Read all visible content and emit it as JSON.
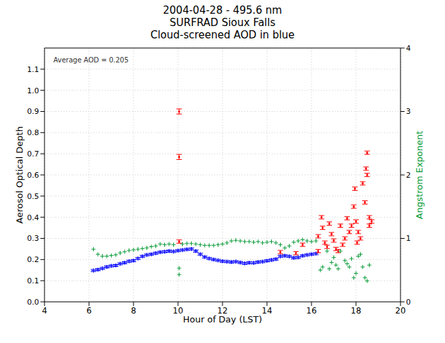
{
  "chart_data": {
    "type": "scatter",
    "title": [
      "2004-04-28 - 495.6 nm",
      "SURFRAD Sioux Falls",
      "Cloud-screened AOD in blue"
    ],
    "x_label": "Hour of Day (LST)",
    "y_label": "Aerosol Optical Depth",
    "y2_label": "Angstrom Exponent",
    "annotations": [
      "Average AOD = 0.205"
    ],
    "xlim": [
      4,
      20
    ],
    "xticks": [
      4,
      6,
      8,
      10,
      12,
      14,
      16,
      18,
      20
    ],
    "ylim": [
      0,
      1.2
    ],
    "yticks": [
      {
        "value": 0,
        "label": "0.0"
      },
      {
        "value": 0.1,
        "label": "0.1"
      },
      {
        "value": 0.2,
        "label": "0.2"
      },
      {
        "value": 0.3,
        "label": "0.3"
      },
      {
        "value": 0.4,
        "label": "0.4"
      },
      {
        "value": 0.5,
        "label": "0.5"
      },
      {
        "value": 0.6,
        "label": "0.6"
      },
      {
        "value": 0.7,
        "label": "0.7"
      },
      {
        "value": 0.8,
        "label": "0.8"
      },
      {
        "value": 0.9,
        "label": "0.9"
      },
      {
        "value": 1,
        "label": "1.0"
      },
      {
        "value": 1.1,
        "label": "1.1"
      }
    ],
    "y2lim": [
      0,
      4
    ],
    "y2ticks": [
      0,
      1,
      2,
      3,
      4
    ],
    "grid": true,
    "series": [
      {
        "color": "#0000ff",
        "marker": "plus",
        "x": [
          6.2,
          6.4,
          6.6,
          6.8,
          7.0,
          7.2,
          7.4,
          7.6,
          7.8,
          8.0,
          8.2,
          8.4,
          8.6,
          8.8,
          9.0,
          9.2,
          9.4,
          9.6,
          9.8,
          10.0,
          10.2,
          10.4,
          10.6,
          10.8,
          11.0,
          11.2,
          11.4,
          11.6,
          11.8,
          12.0,
          12.2,
          12.4,
          12.6,
          12.8,
          13.0,
          13.2,
          13.4,
          13.6,
          13.8,
          14.0,
          14.2,
          14.4,
          14.6,
          14.8,
          15.0,
          15.2,
          15.4,
          15.6,
          15.8,
          16.0,
          16.2
        ],
        "values": [
          0.148,
          0.152,
          0.158,
          0.165,
          0.17,
          0.172,
          0.18,
          0.185,
          0.192,
          0.195,
          0.205,
          0.215,
          0.222,
          0.225,
          0.23,
          0.235,
          0.237,
          0.24,
          0.238,
          0.242,
          0.245,
          0.248,
          0.25,
          0.24,
          0.225,
          0.212,
          0.205,
          0.2,
          0.196,
          0.192,
          0.19,
          0.188,
          0.19,
          0.186,
          0.182,
          0.185,
          0.184,
          0.188,
          0.19,
          0.194,
          0.198,
          0.202,
          0.215,
          0.218,
          0.215,
          0.208,
          0.21,
          0.218,
          0.222,
          0.225,
          0.228
        ],
        "errors": [
          0.005,
          0.005,
          0.005,
          0.005,
          0.005,
          0.005,
          0.005,
          0.005,
          0.005,
          0.005,
          0.005,
          0.005,
          0.005,
          0.005,
          0.005,
          0.005,
          0.005,
          0.005,
          0.005,
          0.005,
          0.005,
          0.005,
          0.005,
          0.005,
          0.005,
          0.005,
          0.005,
          0.005,
          0.005,
          0.005,
          0.005,
          0.005,
          0.005,
          0.005,
          0.005,
          0.005,
          0.005,
          0.005,
          0.005,
          0.005,
          0.005,
          0.005,
          0.005,
          0.005,
          0.005,
          0.005,
          0.005,
          0.005,
          0.005,
          0.005,
          0.005
        ]
      },
      {
        "color": "#ff0000",
        "marker": "point",
        "x": [
          10.05,
          10.05,
          10.05,
          14.6,
          15.3,
          15.6,
          16.3,
          16.3,
          16.45,
          16.5,
          16.6,
          16.7,
          16.8,
          16.9,
          17.0,
          17.1,
          17.2,
          17.3,
          17.4,
          17.5,
          17.6,
          17.7,
          17.8,
          17.9,
          17.95,
          18.0,
          18.05,
          18.1,
          18.2,
          18.3,
          18.4,
          18.45,
          18.5,
          18.5,
          18.6,
          18.6,
          18.7
        ],
        "values": [
          0.9,
          0.685,
          0.285,
          0.235,
          0.23,
          0.27,
          0.31,
          0.24,
          0.4,
          0.35,
          0.28,
          0.26,
          0.37,
          0.32,
          0.29,
          0.25,
          0.24,
          0.36,
          0.27,
          0.3,
          0.395,
          0.33,
          0.36,
          0.45,
          0.535,
          0.38,
          0.28,
          0.33,
          0.3,
          0.56,
          0.47,
          0.63,
          0.705,
          0.6,
          0.4,
          0.36,
          0.38
        ],
        "errors": [
          0.012,
          0.012,
          0.008,
          0.008,
          0.008,
          0.008,
          0.008,
          0.008,
          0.008,
          0.008,
          0.008,
          0.008,
          0.008,
          0.008,
          0.008,
          0.008,
          0.008,
          0.008,
          0.008,
          0.008,
          0.008,
          0.008,
          0.008,
          0.008,
          0.008,
          0.008,
          0.008,
          0.008,
          0.008,
          0.008,
          0.008,
          0.008,
          0.008,
          0.008,
          0.008,
          0.008,
          0.008
        ]
      },
      {
        "color": "#009933",
        "marker": "plus",
        "axis": "y2",
        "x": [
          6.2,
          6.4,
          6.6,
          6.8,
          7.0,
          7.2,
          7.4,
          7.6,
          7.8,
          8.0,
          8.2,
          8.4,
          8.6,
          8.8,
          9.0,
          9.2,
          9.4,
          9.6,
          9.8,
          10.05,
          10.05,
          10.2,
          10.4,
          10.6,
          10.8,
          11.0,
          11.2,
          11.4,
          11.6,
          11.8,
          12.0,
          12.2,
          12.4,
          12.6,
          12.8,
          13.0,
          13.2,
          13.4,
          13.6,
          13.8,
          14.0,
          14.2,
          14.4,
          14.6,
          14.8,
          15.0,
          15.2,
          15.4,
          15.6,
          15.8,
          16.0,
          16.2,
          16.4,
          16.5,
          16.7,
          16.8,
          16.9,
          17.0,
          17.1,
          17.2,
          17.3,
          17.5,
          17.6,
          17.7,
          17.8,
          17.9,
          18.0,
          18.1,
          18.2,
          18.3,
          18.4,
          18.5,
          18.6
        ],
        "values": [
          0.83,
          0.75,
          0.72,
          0.72,
          0.73,
          0.74,
          0.77,
          0.79,
          0.81,
          0.82,
          0.83,
          0.84,
          0.85,
          0.87,
          0.88,
          0.91,
          0.9,
          0.91,
          0.9,
          0.53,
          0.43,
          0.91,
          0.92,
          0.92,
          0.91,
          0.9,
          0.89,
          0.89,
          0.89,
          0.9,
          0.91,
          0.93,
          0.96,
          0.97,
          0.96,
          0.95,
          0.95,
          0.94,
          0.95,
          0.93,
          0.94,
          0.95,
          0.93,
          0.9,
          0.85,
          0.88,
          0.94,
          0.96,
          0.98,
          0.96,
          0.95,
          0.96,
          0.5,
          0.55,
          0.8,
          0.52,
          0.62,
          0.7,
          0.58,
          0.52,
          0.8,
          0.65,
          0.6,
          0.55,
          0.68,
          0.38,
          0.45,
          0.72,
          0.75,
          0.55,
          0.38,
          0.33,
          0.58
        ]
      }
    ]
  }
}
